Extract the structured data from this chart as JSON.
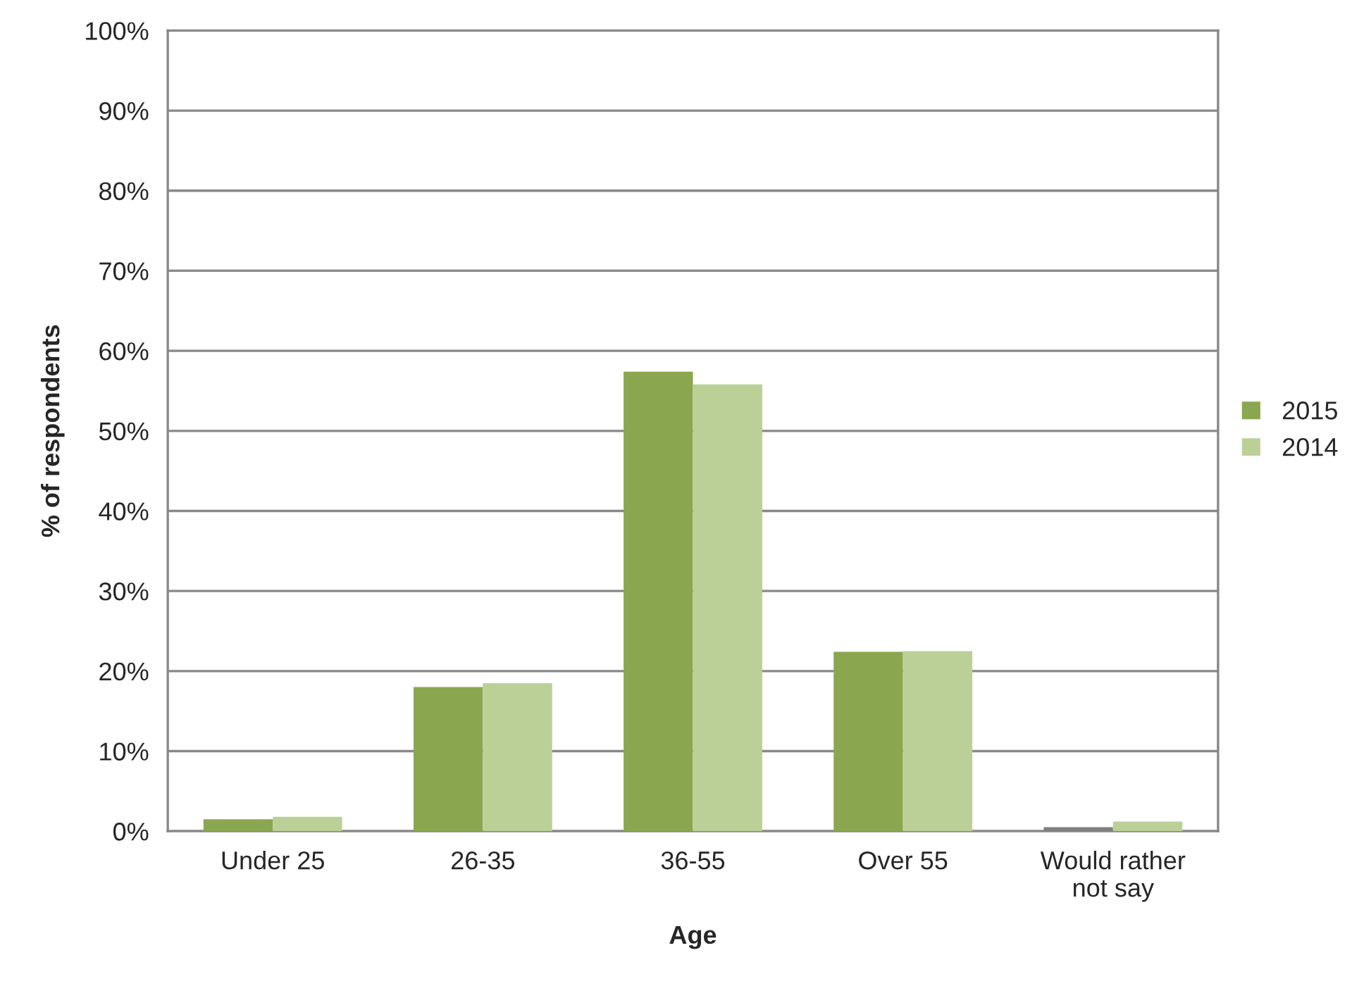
{
  "chart_data": {
    "type": "bar",
    "xlabel": "Age",
    "ylabel": "% of respondents",
    "categories": [
      "Under 25",
      "26-35",
      "36-55",
      "Over 55",
      "Would rather\nnot say"
    ],
    "series": [
      {
        "name": "2015",
        "color": "#8aa64f",
        "colors": [
          "#8aa64f",
          "#8aa64f",
          "#8aa64f",
          "#8aa64f",
          "#7f7f7f"
        ],
        "values": [
          1.5,
          18.0,
          57.4,
          22.4,
          0.5
        ]
      },
      {
        "name": "2014",
        "color": "#bbd097",
        "values": [
          1.8,
          18.5,
          55.8,
          22.5,
          1.2
        ]
      }
    ],
    "ylim": [
      0,
      100
    ],
    "yticks": [
      {
        "value": 0,
        "label": "0%"
      },
      {
        "value": 10,
        "label": "10%"
      },
      {
        "value": 20,
        "label": "20%"
      },
      {
        "value": 30,
        "label": "30%"
      },
      {
        "value": 40,
        "label": "40%"
      },
      {
        "value": 50,
        "label": "50%"
      },
      {
        "value": 60,
        "label": "60%"
      },
      {
        "value": 70,
        "label": "70%"
      },
      {
        "value": 80,
        "label": "80%"
      },
      {
        "value": 90,
        "label": "90%"
      },
      {
        "value": 100,
        "label": "100%"
      }
    ],
    "grid": "y",
    "legend": "right"
  }
}
